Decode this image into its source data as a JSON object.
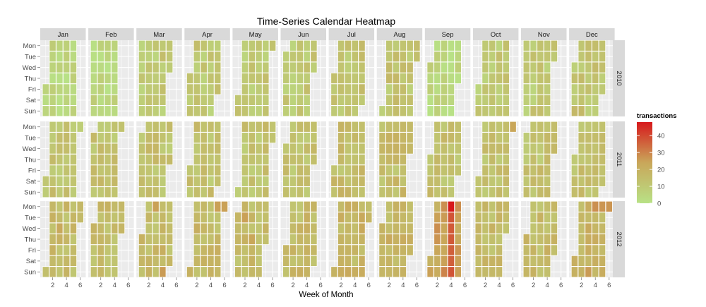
{
  "chart_data": {
    "type": "heatmap",
    "title": "Time-Series Calendar Heatmap",
    "xlabel": "Week of Month",
    "ylabel": "",
    "months": [
      "Jan",
      "Feb",
      "Mar",
      "Apr",
      "May",
      "Jun",
      "Jul",
      "Aug",
      "Sep",
      "Oct",
      "Nov",
      "Dec"
    ],
    "years": [
      "2010",
      "2011",
      "2012"
    ],
    "weekdays": [
      "Mon",
      "Tue",
      "Wed",
      "Thu",
      "Fri",
      "Sat",
      "Sun"
    ],
    "x_ticks": [
      "2",
      "4",
      "6"
    ],
    "x_tick_values": [
      2,
      4,
      6
    ],
    "xlim": [
      0.2,
      6.8
    ],
    "legend": {
      "title": "transactions",
      "breaks": [
        "40",
        "30",
        "20",
        "10",
        "0"
      ],
      "break_values": [
        40,
        30,
        20,
        10,
        0
      ],
      "range": [
        0,
        48
      ],
      "position": "right"
    },
    "colors": {
      "low": "#b8e186",
      "mid": "#c9a75a",
      "high": "#d7191c",
      "panel_bg": "#ebebeb",
      "strip_bg": "#d9d9d9",
      "cell_border": "#ffffff"
    },
    "grid": true,
    "facet_note": "cells = daily transactions; x = week of month, y = weekday; facets month (columns) by year (rows)",
    "special_values": [
      {
        "year": "2012",
        "month": "Sep",
        "week": 4,
        "day": "Mon",
        "value": 48
      },
      {
        "year": "2012",
        "month": "Sep",
        "week": 4,
        "day": "Tue",
        "value": 38
      },
      {
        "year": "2012",
        "month": "Sep",
        "week": 4,
        "day": "Wed",
        "value": 37
      },
      {
        "year": "2012",
        "month": "Sep",
        "week": 4,
        "day": "Thu",
        "value": 37
      },
      {
        "year": "2012",
        "month": "Sep",
        "week": 4,
        "day": "Fri",
        "value": 36
      },
      {
        "year": "2012",
        "month": "Sep",
        "week": 4,
        "day": "Sat",
        "value": 36
      },
      {
        "year": "2012",
        "month": "Sep",
        "week": 4,
        "day": "Sun",
        "value": 38
      },
      {
        "year": "2012",
        "month": "Sep",
        "week": 3,
        "day": "Sun",
        "value": 30
      },
      {
        "year": "2012",
        "month": "Dec",
        "week": 4,
        "day": "Mon",
        "value": 28
      },
      {
        "year": "2012",
        "month": "Dec",
        "week": 5,
        "day": "Mon",
        "value": 27
      },
      {
        "year": "2012",
        "month": "Dec",
        "week": 6,
        "day": "Mon",
        "value": 27
      },
      {
        "year": "2012",
        "month": "Dec",
        "week": 3,
        "day": "Sun",
        "value": 26
      },
      {
        "year": "2012",
        "month": "Mar",
        "week": 3,
        "day": "Mon",
        "value": 25
      },
      {
        "year": "2012",
        "month": "Mar",
        "week": 4,
        "day": "Sun",
        "value": 26
      },
      {
        "year": "2012",
        "month": "Apr",
        "week": 5,
        "day": "Mon",
        "value": 25
      },
      {
        "year": "2012",
        "month": "Apr",
        "week": 6,
        "day": "Mon",
        "value": 25
      },
      {
        "year": "2012",
        "month": "May",
        "week": 2,
        "day": "Tue",
        "value": 25
      },
      {
        "year": "2012",
        "month": "May",
        "week": 3,
        "day": "Thu",
        "value": 24
      },
      {
        "year": "2012",
        "month": "Jan",
        "week": 3,
        "day": "Wed",
        "value": 23
      },
      {
        "year": "2011",
        "month": "Oct",
        "week": 6,
        "day": "Mon",
        "value": 24
      },
      {
        "year": "2010",
        "month": "Nov",
        "week": 6,
        "day": "Tue",
        "value": 23
      }
    ]
  }
}
